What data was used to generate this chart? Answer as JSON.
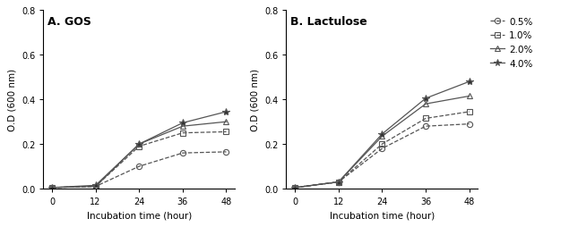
{
  "x": [
    0,
    12,
    24,
    36,
    48
  ],
  "gos": {
    "0.5%": [
      0.005,
      0.01,
      0.1,
      0.16,
      0.165
    ],
    "1.0%": [
      0.005,
      0.01,
      0.19,
      0.25,
      0.255
    ],
    "2.0%": [
      0.005,
      0.01,
      0.2,
      0.28,
      0.3
    ],
    "4.0%": [
      0.005,
      0.015,
      0.2,
      0.295,
      0.345
    ]
  },
  "lactulose": {
    "0.5%": [
      0.005,
      0.03,
      0.18,
      0.28,
      0.29
    ],
    "1.0%": [
      0.005,
      0.03,
      0.2,
      0.315,
      0.345
    ],
    "2.0%": [
      0.005,
      0.03,
      0.235,
      0.38,
      0.415
    ],
    "4.0%": [
      0.005,
      0.03,
      0.245,
      0.405,
      0.48
    ]
  },
  "legend_labels": [
    "0.5%",
    "1.0%",
    "2.0%",
    "4.0%"
  ],
  "markers": [
    "o",
    "s",
    "^",
    "*"
  ],
  "linestyles": [
    "--",
    "--",
    "-",
    "-"
  ],
  "title_A": "A. GOS",
  "title_B": "B. Lactulose",
  "xlabel": "Incubation time (hour)",
  "ylabel": "O.D (600 nm)",
  "ylim": [
    0.0,
    0.8
  ],
  "yticks": [
    0.0,
    0.2,
    0.4,
    0.6,
    0.8
  ],
  "xticks": [
    0,
    12,
    24,
    36,
    48
  ],
  "line_color": "#555555",
  "star_fill": "#333333",
  "bg_color": "#ffffff"
}
